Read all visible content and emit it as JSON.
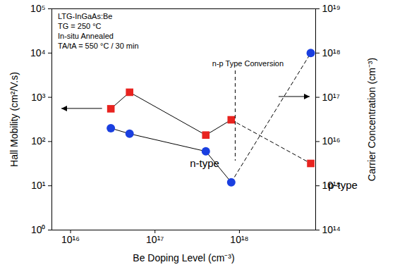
{
  "chart_data": {
    "type": "line",
    "xlabel": "Be Doping Level (cm⁻³)",
    "ylabel": "Hall Mobility (cm²/V.s)",
    "y2label": "Carrier Concentration (cm⁻³)",
    "log": true,
    "grid": false,
    "x": [
      3e+16,
      5e+16,
      4e+17,
      8e+17,
      7e+18
    ],
    "series": [
      {
        "color": "#e8231f",
        "marker": "square",
        "line_style": "solid",
        "values": [
          550,
          1300,
          140,
          310,
          32
        ]
      },
      {
        "color": "#1a3fe0",
        "marker": "circle",
        "line_style": "solid",
        "axis": "y2",
        "values": [
          2e+16,
          1.5e+16,
          6000000000000000.0,
          1200000000000000.0,
          1e+18
        ]
      }
    ],
    "xlim": [
      6000000000000000.0,
      8e+18
    ],
    "xticks": [
      {
        "value": 1e+16,
        "label": "10¹⁶"
      },
      {
        "value": 1e+17,
        "label": "10¹⁷"
      },
      {
        "value": 1e+18,
        "label": "10¹⁸"
      }
    ],
    "ylim": [
      1,
      100000
    ],
    "yticks": [
      {
        "value": 1,
        "label": "10⁰"
      },
      {
        "value": 10,
        "label": "10¹"
      },
      {
        "value": 100,
        "label": "10²"
      },
      {
        "value": 1000,
        "label": "10³"
      },
      {
        "value": 10000,
        "label": "10⁴"
      },
      {
        "value": 100000,
        "label": "10⁵"
      }
    ],
    "y2lim": [
      100000000000000.0,
      1e+19
    ],
    "y2ticks": [
      {
        "value": 100000000000000.0,
        "label": "10¹⁴"
      },
      {
        "value": 1000000000000000.0,
        "label": "10¹⁵"
      },
      {
        "value": 1e+16,
        "label": "10¹⁶"
      },
      {
        "value": 1e+17,
        "label": "10¹⁷"
      },
      {
        "value": 1e+18,
        "label": "10¹⁸"
      },
      {
        "value": 1e+19,
        "label": "10¹⁹"
      }
    ],
    "annotations": [
      {
        "text": "LTG-InGaAs:Be"
      },
      {
        "text": "TG = 250 °C"
      },
      {
        "text": "In-situ Annealed"
      },
      {
        "text": "TA/tA = 550 °C / 30 min"
      },
      {
        "text": "n-p Type Conversion",
        "x": 9e+17
      },
      {
        "text": "n-type"
      },
      {
        "text": "p-type"
      }
    ]
  }
}
